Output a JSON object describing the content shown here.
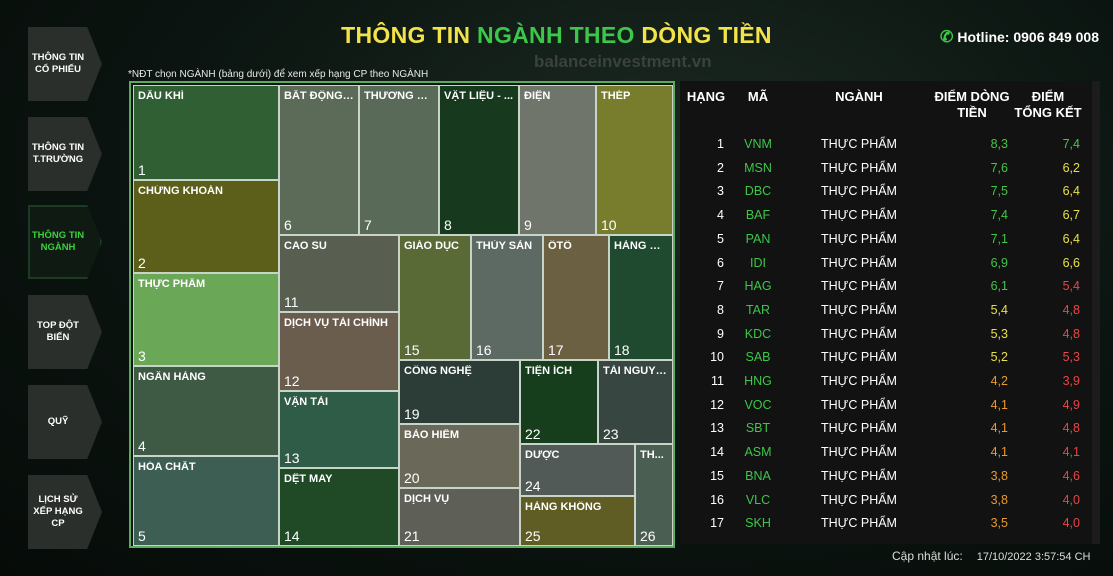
{
  "nav": [
    {
      "label": "THÔNG TIN CỔ PHIẾU",
      "active": false
    },
    {
      "label": "THÔNG TIN T.TRƯỜNG",
      "active": false
    },
    {
      "label": "THÔNG TIN NGÀNH",
      "active": true
    },
    {
      "label": "TOP ĐỘT BIẾN",
      "active": false
    },
    {
      "label": "QUỸ",
      "active": false
    },
    {
      "label": "LỊCH SỬ XẾP HẠNG CP",
      "active": false
    }
  ],
  "header": {
    "title_part1": "THÔNG TIN ",
    "title_part2": "NGÀNH THEO ",
    "title_part3": "DÒNG TIỀN",
    "watermark": "balanceinvestment.vn",
    "hotline": "Hotline: 0906 849 008"
  },
  "note": "*NĐT chọn NGÀNH (bảng dưới) để xem xếp hạng CP theo NGÀNH",
  "treemap": [
    {
      "name": "DẦU KHÍ",
      "rank": "1",
      "color": "#2f5f33"
    },
    {
      "name": "CHỨNG KHOÁN",
      "rank": "2",
      "color": "#5c5f1a"
    },
    {
      "name": "THỰC PHẨM",
      "rank": "3",
      "color": "#6aa857"
    },
    {
      "name": "NGÂN HÀNG",
      "rank": "4",
      "color": "#3f5a44"
    },
    {
      "name": "HÓA CHẤT",
      "rank": "5",
      "color": "#3d5e52"
    },
    {
      "name": "BẤT ĐỘNG ...",
      "rank": "6",
      "color": "#5c6b57"
    },
    {
      "name": "THƯƠNG MẠI",
      "rank": "7",
      "color": "#5a6a58"
    },
    {
      "name": "VẬT LIỆU - ...",
      "rank": "8",
      "color": "#173a1e"
    },
    {
      "name": "ĐIỆN",
      "rank": "9",
      "color": "#6f756a"
    },
    {
      "name": "THÉP",
      "rank": "10",
      "color": "#777d2d"
    },
    {
      "name": "CAO SU",
      "rank": "11",
      "color": "#595f50"
    },
    {
      "name": "DỊCH VỤ TÀI CHÍNH",
      "rank": "12",
      "color": "#6a5d4e"
    },
    {
      "name": "VẬN TẢI",
      "rank": "13",
      "color": "#2f5c46"
    },
    {
      "name": "DỆT MAY",
      "rank": "14",
      "color": "#1f4a25"
    },
    {
      "name": "GIÁO DỤC",
      "rank": "15",
      "color": "#5a6a36"
    },
    {
      "name": "THỦY SẢN",
      "rank": "16",
      "color": "#5d6963"
    },
    {
      "name": "ÔTÔ",
      "rank": "17",
      "color": "#6b6142"
    },
    {
      "name": "HÀNG DỊ...",
      "rank": "18",
      "color": "#1f4a30"
    },
    {
      "name": "CÔNG NGHỆ",
      "rank": "19",
      "color": "#2b3d36"
    },
    {
      "name": "BẢO HIỂM",
      "rank": "20",
      "color": "#6a6858"
    },
    {
      "name": "DỊCH VỤ",
      "rank": "21",
      "color": "#5e6058"
    },
    {
      "name": "TIỆN ÍCH",
      "rank": "22",
      "color": "#173e1c"
    },
    {
      "name": "TÀI NGUYÊN",
      "rank": "23",
      "color": "#374640"
    },
    {
      "name": "DƯỢC",
      "rank": "24",
      "color": "#525a57"
    },
    {
      "name": "HÀNG KHÔNG",
      "rank": "25",
      "color": "#5f5c24"
    },
    {
      "name": "TH...",
      "rank": "26",
      "color": "#4b5e52"
    }
  ],
  "table": {
    "headers": {
      "rank": "HẠNG",
      "code": "MÃ",
      "sector": "NGÀNH",
      "flow": "ĐIỂM DÒNG TIỀN",
      "total": "ĐIỂM TỔNG KẾT"
    },
    "rows": [
      {
        "rank": "1",
        "code": "VNM",
        "sector": "THỰC PHẨM",
        "flow": "8,3",
        "total": "7,4",
        "flow_color": "#45c44a",
        "total_color": "#45c44a"
      },
      {
        "rank": "2",
        "code": "MSN",
        "sector": "THỰC PHẨM",
        "flow": "7,6",
        "total": "6,2",
        "flow_color": "#45c44a",
        "total_color": "#e8e04a"
      },
      {
        "rank": "3",
        "code": "DBC",
        "sector": "THỰC PHẨM",
        "flow": "7,5",
        "total": "6,4",
        "flow_color": "#45c44a",
        "total_color": "#e8e04a"
      },
      {
        "rank": "4",
        "code": "BAF",
        "sector": "THỰC PHẨM",
        "flow": "7,4",
        "total": "6,7",
        "flow_color": "#45c44a",
        "total_color": "#e8e04a"
      },
      {
        "rank": "5",
        "code": "PAN",
        "sector": "THỰC PHẨM",
        "flow": "7,1",
        "total": "6,4",
        "flow_color": "#45c44a",
        "total_color": "#e8e04a"
      },
      {
        "rank": "6",
        "code": "IDI",
        "sector": "THỰC PHẨM",
        "flow": "6,9",
        "total": "6,6",
        "flow_color": "#45c44a",
        "total_color": "#e8e04a"
      },
      {
        "rank": "7",
        "code": "HAG",
        "sector": "THỰC PHẨM",
        "flow": "6,1",
        "total": "5,4",
        "flow_color": "#45c44a",
        "total_color": "#e84545"
      },
      {
        "rank": "8",
        "code": "TAR",
        "sector": "THỰC PHẨM",
        "flow": "5,4",
        "total": "4,8",
        "flow_color": "#e8e04a",
        "total_color": "#e84545"
      },
      {
        "rank": "9",
        "code": "KDC",
        "sector": "THỰC PHẨM",
        "flow": "5,3",
        "total": "4,8",
        "flow_color": "#e8e04a",
        "total_color": "#e84545"
      },
      {
        "rank": "10",
        "code": "SAB",
        "sector": "THỰC PHẨM",
        "flow": "5,2",
        "total": "5,3",
        "flow_color": "#e8e04a",
        "total_color": "#e84545"
      },
      {
        "rank": "11",
        "code": "HNG",
        "sector": "THỰC PHẨM",
        "flow": "4,2",
        "total": "3,9",
        "flow_color": "#e89a2a",
        "total_color": "#e84545"
      },
      {
        "rank": "12",
        "code": "VOC",
        "sector": "THỰC PHẨM",
        "flow": "4,1",
        "total": "4,9",
        "flow_color": "#e89a2a",
        "total_color": "#e84545"
      },
      {
        "rank": "13",
        "code": "SBT",
        "sector": "THỰC PHẨM",
        "flow": "4,1",
        "total": "4,8",
        "flow_color": "#e89a2a",
        "total_color": "#e84545"
      },
      {
        "rank": "14",
        "code": "ASM",
        "sector": "THỰC PHẨM",
        "flow": "4,1",
        "total": "4,1",
        "flow_color": "#e89a2a",
        "total_color": "#e84545"
      },
      {
        "rank": "15",
        "code": "BNA",
        "sector": "THỰC PHẨM",
        "flow": "3,8",
        "total": "4,6",
        "flow_color": "#e89a2a",
        "total_color": "#e84545"
      },
      {
        "rank": "16",
        "code": "VLC",
        "sector": "THỰC PHẨM",
        "flow": "3,8",
        "total": "4,0",
        "flow_color": "#e89a2a",
        "total_color": "#e84545"
      },
      {
        "rank": "17",
        "code": "SKH",
        "sector": "THỰC PHẨM",
        "flow": "3,5",
        "total": "4,0",
        "flow_color": "#e89a2a",
        "total_color": "#e84545"
      }
    ]
  },
  "update": {
    "label": "Cập nhật lúc:",
    "time": "17/10/2022 3:57:54 CH"
  }
}
